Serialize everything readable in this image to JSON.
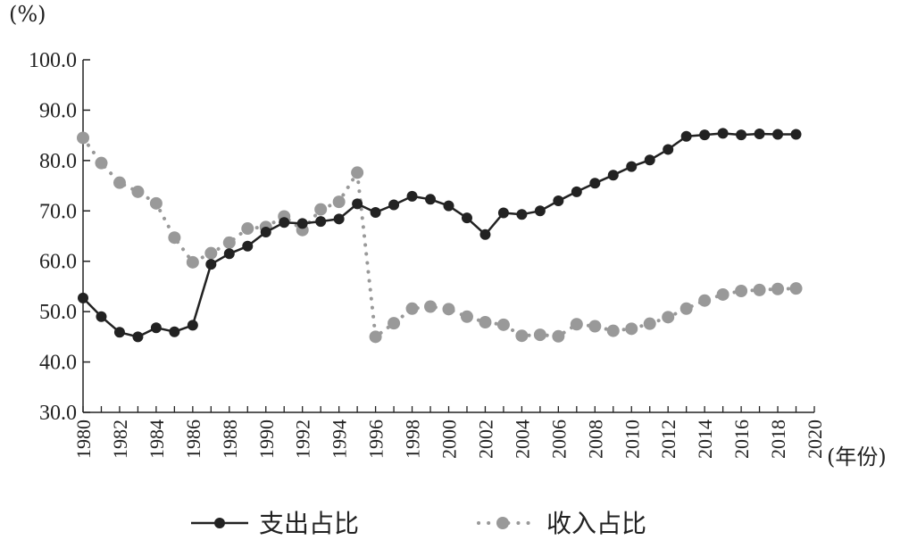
{
  "chart_data": {
    "type": "line",
    "ylabel": "(%)",
    "xlabel": "(年份)",
    "ylim": [
      30,
      100
    ],
    "xlim": [
      1980,
      2020
    ],
    "yticks": [
      "30.0",
      "40.0",
      "50.0",
      "60.0",
      "70.0",
      "80.0",
      "90.0",
      "100.0"
    ],
    "xticks": [
      "1980",
      "1982",
      "1984",
      "1986",
      "1988",
      "1990",
      "1992",
      "1994",
      "1996",
      "1998",
      "2000",
      "2002",
      "2004",
      "2006",
      "2008",
      "2010",
      "2012",
      "2014",
      "2016",
      "2018",
      "2020"
    ],
    "legend_position": "bottom",
    "grid": false,
    "series": [
      {
        "name": "支出占比",
        "style": "solid",
        "color": "#222222",
        "x": [
          1980,
          1981,
          1982,
          1983,
          1984,
          1985,
          1986,
          1987,
          1988,
          1989,
          1990,
          1991,
          1992,
          1993,
          1994,
          1995,
          1996,
          1997,
          1998,
          1999,
          2000,
          2001,
          2002,
          2003,
          2004,
          2005,
          2006,
          2007,
          2008,
          2009,
          2010,
          2011,
          2012,
          2013,
          2014,
          2015,
          2016,
          2017,
          2018,
          2019
        ],
        "values": [
          52.7,
          49.0,
          45.9,
          45.0,
          46.8,
          46.0,
          47.3,
          59.4,
          61.5,
          63.0,
          65.8,
          67.7,
          67.5,
          67.9,
          68.4,
          71.4,
          69.7,
          71.2,
          72.9,
          72.3,
          71.0,
          68.6,
          65.3,
          69.6,
          69.3,
          70.0,
          72.0,
          73.8,
          75.5,
          77.1,
          78.8,
          80.1,
          82.2,
          84.8,
          85.1,
          85.4,
          85.1,
          85.3,
          85.2,
          85.2
        ]
      },
      {
        "name": "收入占比",
        "style": "dotted",
        "color": "#999999",
        "x": [
          1980,
          1981,
          1982,
          1983,
          1984,
          1985,
          1986,
          1987,
          1988,
          1989,
          1990,
          1991,
          1992,
          1993,
          1994,
          1995,
          1996,
          1997,
          1998,
          1999,
          2000,
          2001,
          2002,
          2003,
          2004,
          2005,
          2006,
          2007,
          2008,
          2009,
          2010,
          2011,
          2012,
          2013,
          2014,
          2015,
          2016,
          2017,
          2018,
          2019
        ],
        "values": [
          84.5,
          79.5,
          75.6,
          73.8,
          71.5,
          64.7,
          59.8,
          61.6,
          63.7,
          66.5,
          66.8,
          68.9,
          66.2,
          70.3,
          71.8,
          77.6,
          45.0,
          47.7,
          50.6,
          51.0,
          50.5,
          49.0,
          47.9,
          47.4,
          45.2,
          45.4,
          45.1,
          47.5,
          47.1,
          46.2,
          46.6,
          47.6,
          48.9,
          50.6,
          52.2,
          53.4,
          54.1,
          54.3,
          54.5,
          54.6
        ]
      }
    ]
  }
}
